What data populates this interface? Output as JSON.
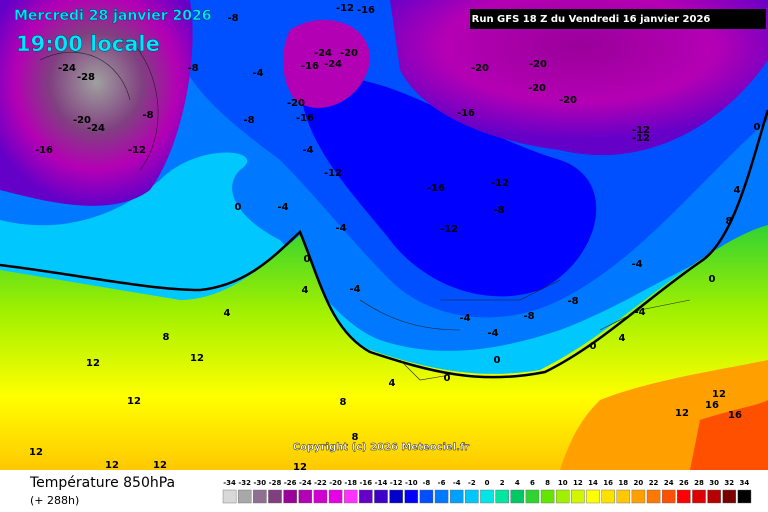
{
  "header": {
    "date": "Mercredi 28 janvier 2026",
    "time": "19:00 locale",
    "run": "Run GFS 18 Z du Vendredi 16 janvier 2026"
  },
  "copyright": "Copyright (c) 2026 Meteociel.fr",
  "legend": {
    "title": "Température 850hPa",
    "subtitle": "(+ 288h)",
    "ticks": [
      -34,
      -32,
      -30,
      -28,
      -26,
      -24,
      -22,
      -20,
      -18,
      -16,
      -14,
      -12,
      -10,
      -8,
      -6,
      -4,
      -2,
      0,
      2,
      4,
      6,
      8,
      10,
      12,
      14,
      16,
      18,
      20,
      22,
      24,
      26,
      28,
      30,
      32,
      34
    ],
    "colors": [
      "#d8d8d8",
      "#a8a8a8",
      "#907090",
      "#804080",
      "#9a009a",
      "#b400b4",
      "#d000d0",
      "#e600e6",
      "#ff32ff",
      "#6400c8",
      "#3c00c8",
      "#0000c8",
      "#0000ff",
      "#0050ff",
      "#0078ff",
      "#00a0ff",
      "#00c8ff",
      "#00e6e6",
      "#00e6a0",
      "#00c864",
      "#32d232",
      "#64e600",
      "#a0f000",
      "#d2f500",
      "#ffff00",
      "#ffe100",
      "#ffc800",
      "#ffa000",
      "#ff7800",
      "#ff5000",
      "#ff0000",
      "#dc0000",
      "#b40000",
      "#780000",
      "#000000"
    ]
  },
  "map_labels": [
    -12,
    -16,
    -8,
    -24,
    -20,
    -16,
    -24,
    -20,
    -20,
    -20,
    -20,
    -16,
    -12,
    -12,
    -24,
    -28,
    -20,
    -24,
    -16,
    -12,
    -8,
    -8,
    -4,
    -8,
    -16,
    -20,
    -4,
    -12,
    -16,
    -12,
    -8,
    -4,
    -12,
    0,
    -4,
    0,
    4,
    4,
    8,
    12,
    12,
    12,
    12,
    12,
    12,
    12,
    8,
    -4,
    -4,
    -4,
    -8,
    -8,
    0,
    0,
    4,
    4,
    0,
    -4,
    0,
    0,
    4,
    8,
    12,
    16,
    16,
    12,
    8,
    -4
  ]
}
